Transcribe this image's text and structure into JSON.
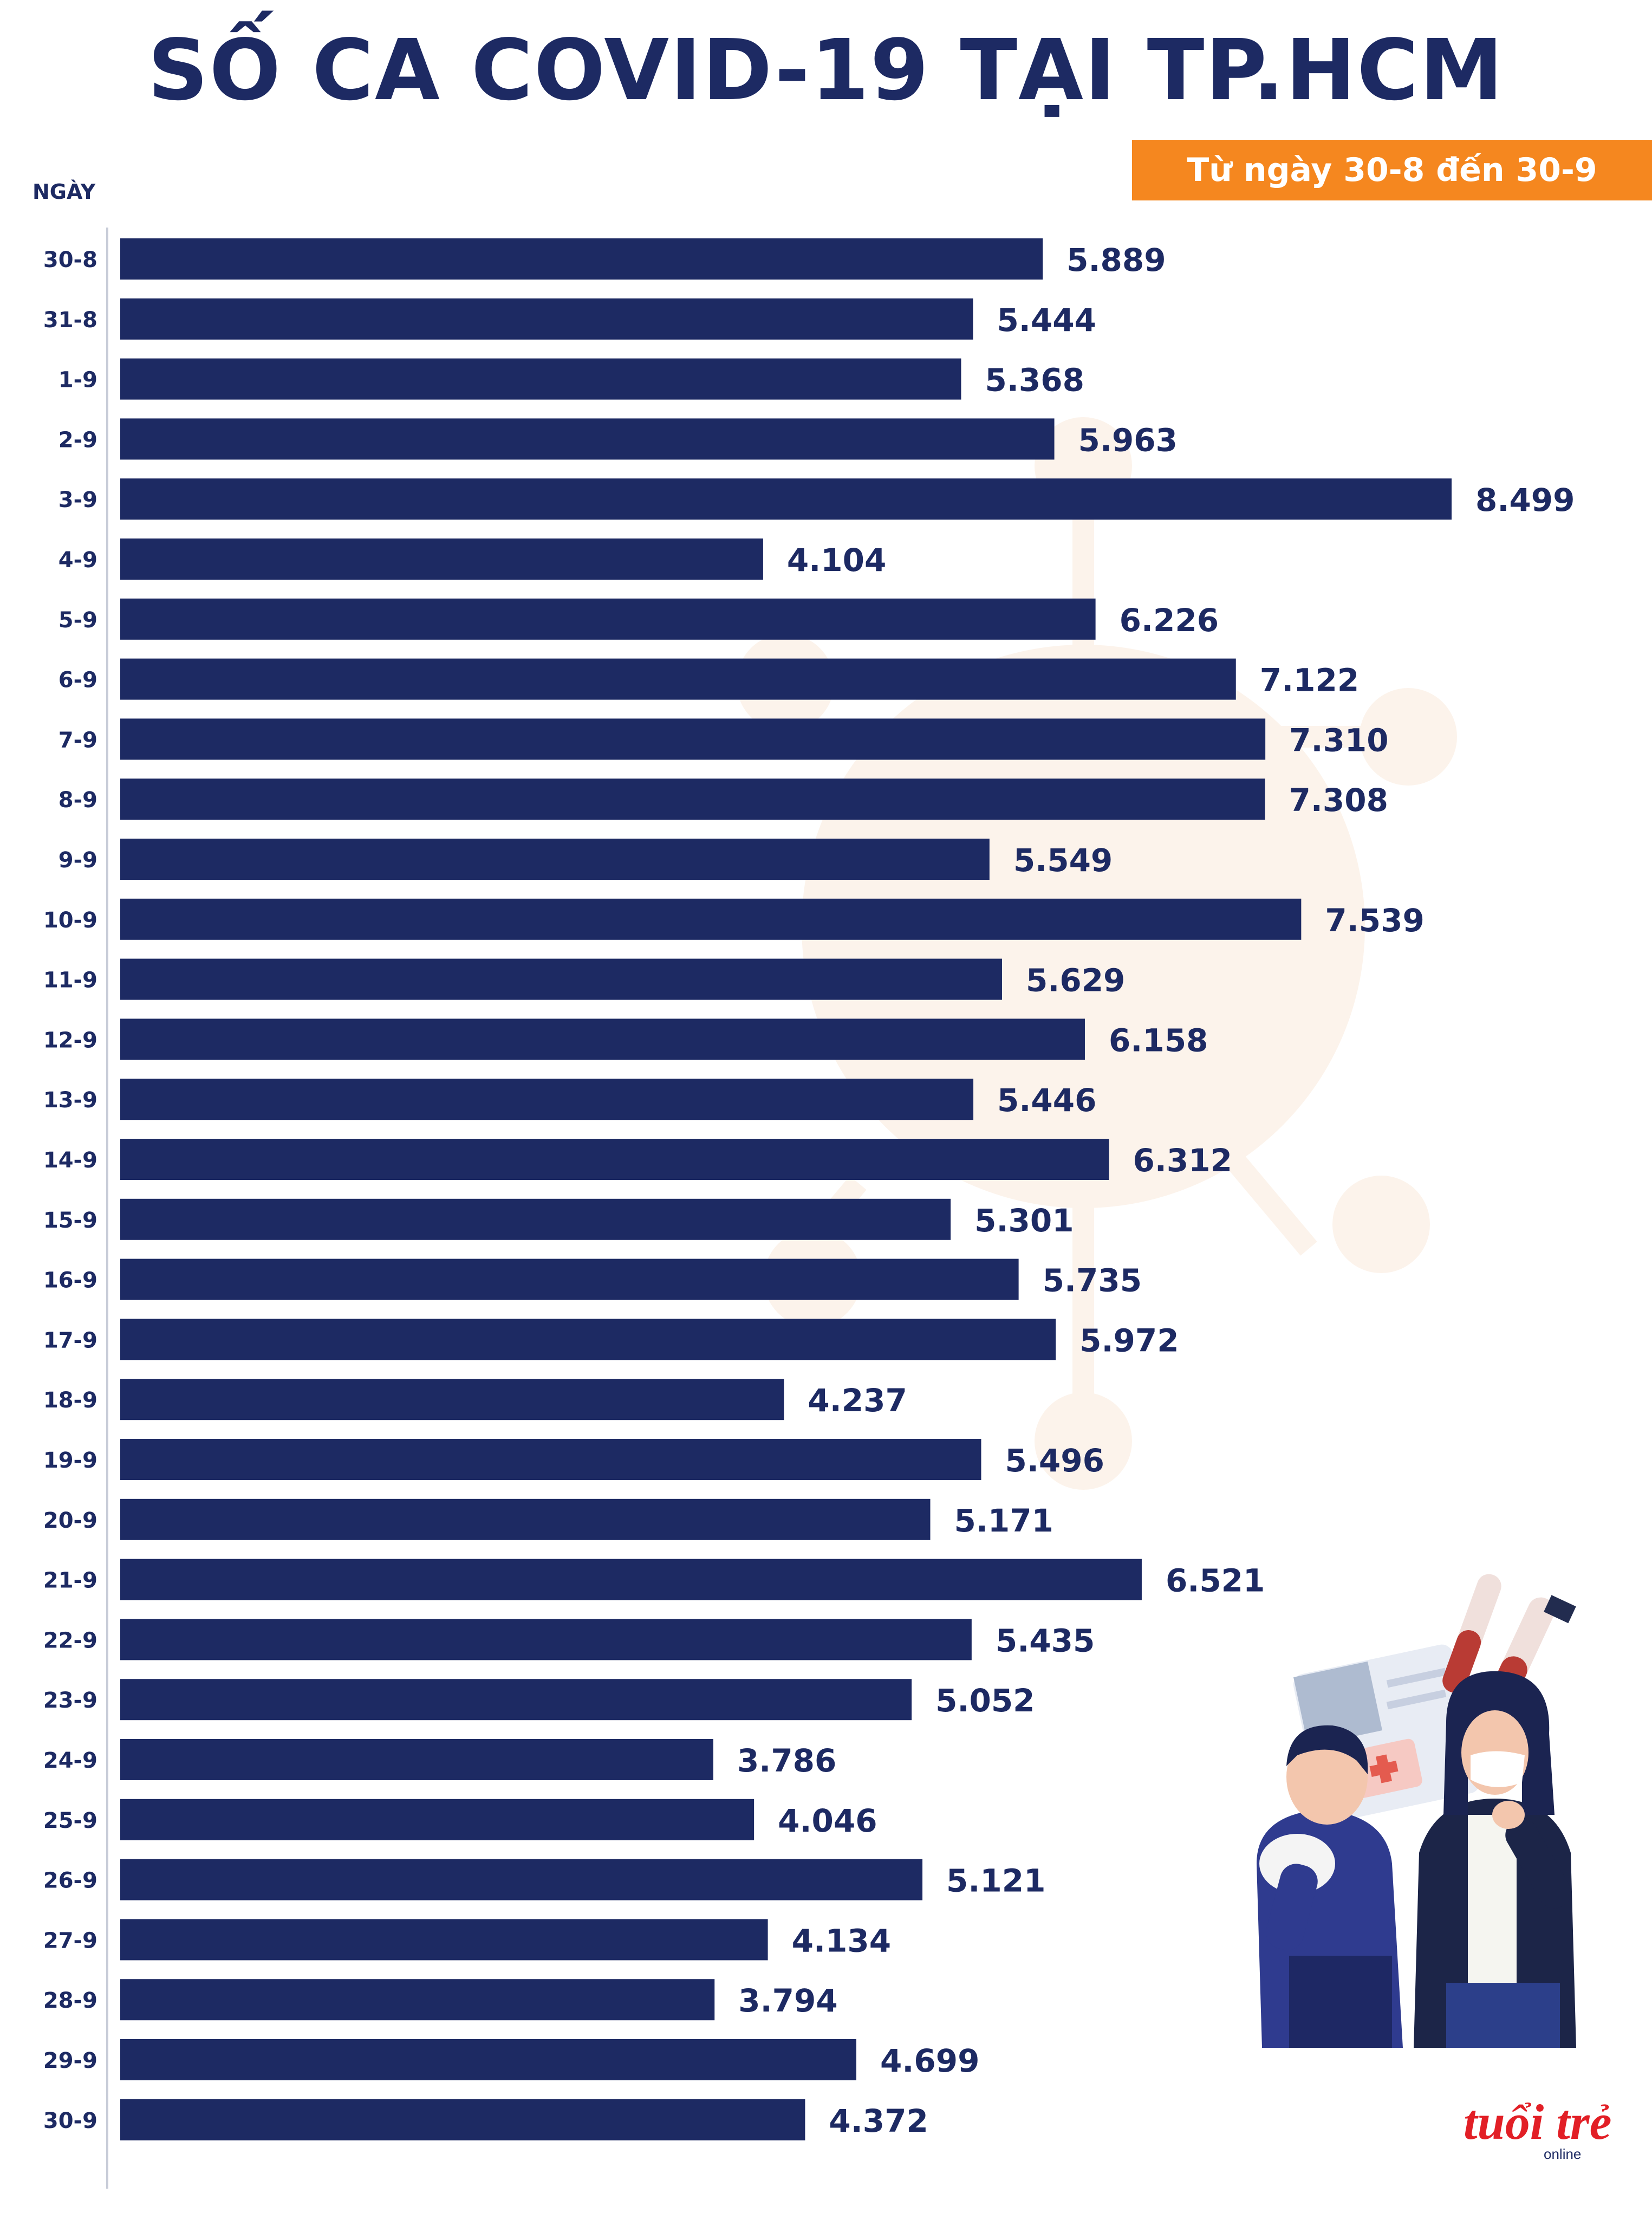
{
  "title": "SỐ CA COVID-19 TẠI TP.HCM",
  "subtitle": "Từ ngày 30-8 đến 30-9",
  "colors": {
    "bar": "#1d2a63",
    "accent": "#f5871f",
    "logo_red": "#e21f26"
  },
  "logo": {
    "brand": "tuổi trẻ",
    "sub": "online"
  },
  "chart_data": {
    "type": "bar",
    "orientation": "horizontal",
    "title": "SỐ CA COVID-19 TẠI TP.HCM",
    "subtitle": "Từ ngày 30-8 đến 30-9",
    "xlabel": "",
    "ylabel": "NGÀY",
    "xlim": [
      0,
      8499
    ],
    "categories": [
      "30-8",
      "31-8",
      "1-9",
      "2-9",
      "3-9",
      "4-9",
      "5-9",
      "6-9",
      "7-9",
      "8-9",
      "9-9",
      "10-9",
      "11-9",
      "12-9",
      "13-9",
      "14-9",
      "15-9",
      "16-9",
      "17-9",
      "18-9",
      "19-9",
      "20-9",
      "21-9",
      "22-9",
      "23-9",
      "24-9",
      "25-9",
      "26-9",
      "27-9",
      "28-9",
      "29-9",
      "30-9"
    ],
    "values": [
      5889,
      5444,
      5368,
      5963,
      8499,
      4104,
      6226,
      7122,
      7310,
      7308,
      5549,
      7539,
      5629,
      6158,
      5446,
      6312,
      5301,
      5735,
      5972,
      4237,
      5496,
      5171,
      6521,
      5435,
      5052,
      3786,
      4046,
      5121,
      4134,
      3794,
      4699,
      4372
    ],
    "value_labels": [
      "5.889",
      "5.444",
      "5.368",
      "5.963",
      "8.499",
      "4.104",
      "6.226",
      "7.122",
      "7.310",
      "7.308",
      "5.549",
      "7.539",
      "5.629",
      "6.158",
      "5.446",
      "6.312",
      "5.301",
      "5.735",
      "5.972",
      "4.237",
      "5.496",
      "5.171",
      "6.521",
      "5.435",
      "5.052",
      "3.786",
      "4.046",
      "5.121",
      "4.134",
      "3.794",
      "4.699",
      "4.372"
    ]
  }
}
